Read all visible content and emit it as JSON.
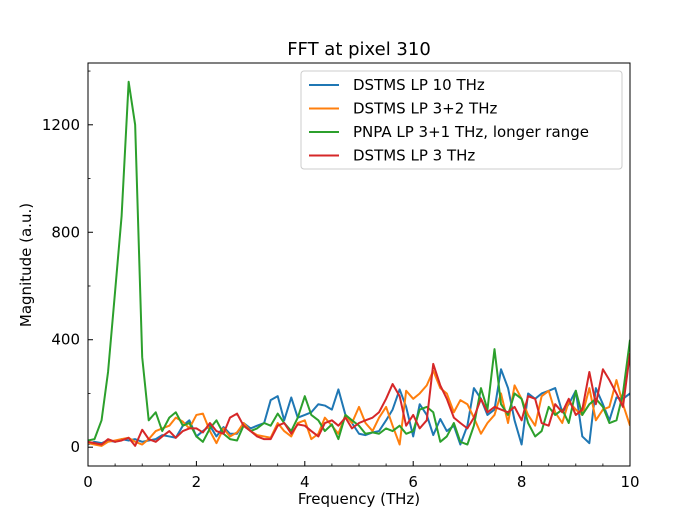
{
  "chart_data": {
    "type": "line",
    "title": "FFT at pixel 310",
    "xlabel": "Frequency (THz)",
    "ylabel": "Magnitude (a.u.)",
    "xlim": [
      0,
      10
    ],
    "ylim": [
      -70,
      1430
    ],
    "xticks": [
      0,
      2,
      4,
      6,
      8,
      10
    ],
    "yticks": [
      0,
      400,
      800,
      1200
    ],
    "grid": false,
    "legend": "top-right",
    "series": [
      {
        "name": "DSTMS LP 10 THz",
        "color": "#1f77b4",
        "x": [
          0,
          0.12,
          0.25,
          0.37,
          0.5,
          0.62,
          0.75,
          0.87,
          1.0,
          1.12,
          1.25,
          1.37,
          1.5,
          1.62,
          1.75,
          1.87,
          2.0,
          2.12,
          2.25,
          2.37,
          2.5,
          2.62,
          2.75,
          2.87,
          3.0,
          3.12,
          3.25,
          3.37,
          3.5,
          3.62,
          3.75,
          3.87,
          4.0,
          4.12,
          4.25,
          4.37,
          4.5,
          4.62,
          4.75,
          4.87,
          5.0,
          5.12,
          5.25,
          5.37,
          5.5,
          5.62,
          5.75,
          5.87,
          6.0,
          6.12,
          6.25,
          6.37,
          6.5,
          6.62,
          6.75,
          6.87,
          7.0,
          7.12,
          7.25,
          7.37,
          7.5,
          7.62,
          7.75,
          7.87,
          8.0,
          8.12,
          8.25,
          8.37,
          8.5,
          8.62,
          8.75,
          8.87,
          9.0,
          9.12,
          9.25,
          9.37,
          9.5,
          9.62,
          9.75,
          9.87,
          10.0
        ],
        "y": [
          10,
          20,
          15,
          25,
          20,
          30,
          25,
          30,
          20,
          25,
          30,
          45,
          40,
          35,
          80,
          100,
          40,
          60,
          80,
          40,
          75,
          50,
          50,
          90,
          70,
          80,
          90,
          175,
          190,
          100,
          185,
          110,
          120,
          130,
          160,
          155,
          140,
          215,
          120,
          90,
          50,
          45,
          55,
          60,
          100,
          140,
          215,
          150,
          40,
          160,
          120,
          45,
          105,
          60,
          80,
          10,
          80,
          220,
          180,
          120,
          140,
          290,
          220,
          100,
          10,
          200,
          180,
          200,
          210,
          220,
          130,
          160,
          210,
          40,
          15,
          220,
          160,
          100,
          185,
          180,
          200
        ]
      },
      {
        "name": "DSTMS LP 3+2 THz",
        "color": "#ff7f0e",
        "x": [
          0,
          0.12,
          0.25,
          0.37,
          0.5,
          0.62,
          0.75,
          0.87,
          1.0,
          1.12,
          1.25,
          1.37,
          1.5,
          1.62,
          1.75,
          1.87,
          2.0,
          2.12,
          2.25,
          2.37,
          2.5,
          2.62,
          2.75,
          2.87,
          3.0,
          3.12,
          3.25,
          3.37,
          3.5,
          3.62,
          3.75,
          3.87,
          4.0,
          4.12,
          4.25,
          4.37,
          4.5,
          4.62,
          4.75,
          4.87,
          5.0,
          5.12,
          5.25,
          5.37,
          5.5,
          5.62,
          5.75,
          5.87,
          6.0,
          6.12,
          6.25,
          6.37,
          6.5,
          6.62,
          6.75,
          6.87,
          7.0,
          7.12,
          7.25,
          7.37,
          7.5,
          7.62,
          7.75,
          7.87,
          8.0,
          8.12,
          8.25,
          8.37,
          8.5,
          8.62,
          8.75,
          8.87,
          9.0,
          9.12,
          9.25,
          9.37,
          9.5,
          9.62,
          9.75,
          9.87,
          10.0
        ],
        "y": [
          15,
          10,
          5,
          20,
          25,
          30,
          35,
          20,
          10,
          30,
          60,
          70,
          80,
          110,
          95,
          70,
          120,
          125,
          60,
          15,
          70,
          40,
          55,
          90,
          60,
          45,
          40,
          35,
          90,
          60,
          40,
          90,
          100,
          30,
          50,
          110,
          80,
          50,
          120,
          90,
          150,
          90,
          60,
          110,
          150,
          80,
          10,
          210,
          180,
          200,
          230,
          285,
          220,
          200,
          130,
          175,
          160,
          110,
          50,
          90,
          120,
          200,
          90,
          230,
          180,
          120,
          80,
          190,
          210,
          130,
          90,
          170,
          140,
          120,
          220,
          100,
          140,
          150,
          250,
          160,
          80
        ]
      },
      {
        "name": "PNPA LP 3+1 THz, longer range",
        "color": "#2ca02c",
        "x": [
          0,
          0.12,
          0.25,
          0.37,
          0.5,
          0.62,
          0.75,
          0.87,
          1.0,
          1.12,
          1.25,
          1.37,
          1.5,
          1.62,
          1.75,
          1.87,
          2.0,
          2.12,
          2.25,
          2.37,
          2.5,
          2.62,
          2.75,
          2.87,
          3.0,
          3.12,
          3.25,
          3.37,
          3.5,
          3.62,
          3.75,
          3.87,
          4.0,
          4.12,
          4.25,
          4.37,
          4.5,
          4.62,
          4.75,
          4.87,
          5.0,
          5.12,
          5.25,
          5.37,
          5.5,
          5.62,
          5.75,
          5.87,
          6.0,
          6.12,
          6.25,
          6.37,
          6.5,
          6.62,
          6.75,
          6.87,
          7.0,
          7.12,
          7.25,
          7.37,
          7.5,
          7.62,
          7.75,
          7.87,
          8.0,
          8.12,
          8.25,
          8.37,
          8.5,
          8.62,
          8.75,
          8.87,
          9.0,
          9.12,
          9.25,
          9.37,
          9.5,
          9.62,
          9.75,
          9.87,
          10.0
        ],
        "y": [
          25,
          30,
          100,
          280,
          580,
          860,
          1360,
          1200,
          335,
          100,
          130,
          60,
          110,
          130,
          80,
          90,
          40,
          20,
          70,
          100,
          50,
          30,
          25,
          80,
          60,
          70,
          90,
          80,
          125,
          90,
          60,
          110,
          190,
          120,
          100,
          60,
          85,
          30,
          120,
          100,
          80,
          50,
          55,
          50,
          70,
          60,
          80,
          50,
          60,
          140,
          150,
          130,
          20,
          40,
          90,
          20,
          10,
          80,
          220,
          140,
          365,
          160,
          120,
          200,
          180,
          90,
          40,
          60,
          150,
          120,
          140,
          90,
          210,
          120,
          160,
          180,
          150,
          90,
          100,
          200,
          400
        ]
      },
      {
        "name": "DSTMS LP 3 THz",
        "color": "#d62728",
        "x": [
          0,
          0.12,
          0.25,
          0.37,
          0.5,
          0.62,
          0.75,
          0.87,
          1.0,
          1.12,
          1.25,
          1.37,
          1.5,
          1.62,
          1.75,
          1.87,
          2.0,
          2.12,
          2.25,
          2.37,
          2.5,
          2.62,
          2.75,
          2.87,
          3.0,
          3.12,
          3.25,
          3.37,
          3.5,
          3.62,
          3.75,
          3.87,
          4.0,
          4.12,
          4.25,
          4.37,
          4.5,
          4.62,
          4.75,
          4.87,
          5.0,
          5.12,
          5.25,
          5.37,
          5.5,
          5.62,
          5.75,
          5.87,
          6.0,
          6.12,
          6.25,
          6.37,
          6.5,
          6.62,
          6.75,
          6.87,
          7.0,
          7.12,
          7.25,
          7.37,
          7.5,
          7.62,
          7.75,
          7.87,
          8.0,
          8.12,
          8.25,
          8.37,
          8.5,
          8.62,
          8.75,
          8.87,
          9.0,
          9.12,
          9.25,
          9.37,
          9.5,
          9.62,
          9.75,
          9.87,
          10.0
        ],
        "y": [
          20,
          15,
          10,
          30,
          20,
          25,
          35,
          5,
          65,
          30,
          20,
          40,
          60,
          35,
          60,
          70,
          70,
          55,
          90,
          60,
          50,
          110,
          125,
          80,
          60,
          40,
          30,
          30,
          80,
          90,
          50,
          85,
          80,
          60,
          40,
          90,
          100,
          80,
          110,
          70,
          90,
          100,
          110,
          130,
          180,
          235,
          190,
          80,
          120,
          70,
          100,
          310,
          230,
          180,
          110,
          90,
          70,
          110,
          180,
          130,
          150,
          140,
          130,
          150,
          100,
          190,
          180,
          90,
          80,
          160,
          130,
          180,
          120,
          140,
          280,
          160,
          290,
          250,
          200,
          150,
          350
        ]
      }
    ]
  }
}
